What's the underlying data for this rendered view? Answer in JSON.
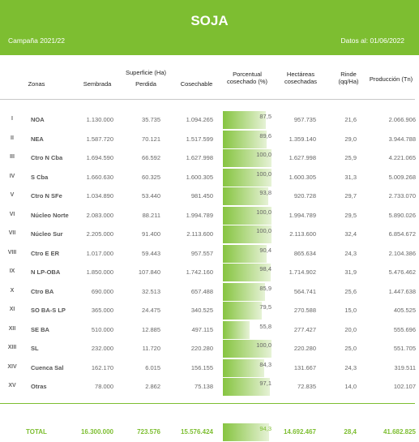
{
  "header": {
    "title": "SOJA",
    "campaign": "Campaña 2021/22",
    "date": "Datos al: 01/06/2022"
  },
  "table": {
    "columns": {
      "zonas": "Zonas",
      "superficie": "Superficie (Ha)",
      "sembrada": "Sembrada",
      "perdida": "Perdida",
      "cosechable": "Cosechable",
      "porcentual": "Porcentual\ncosechado (%)",
      "hectareas": "Hectáreas\ncosechadas",
      "rinde": "Rinde\n(qq/Ha)",
      "produccion": "Producción (Tn)"
    },
    "rows": [
      [
        "I",
        "NOA",
        "1.130.000",
        "35.735",
        "1.094.265",
        "87,5",
        "957.735",
        "21,6",
        "2.066.906"
      ],
      [
        "II",
        "NEA",
        "1.587.720",
        "70.121",
        "1.517.599",
        "89,6",
        "1.359.140",
        "29,0",
        "3.944.788"
      ],
      [
        "III",
        "Ctro N Cba",
        "1.694.590",
        "66.592",
        "1.627.998",
        "100,0",
        "1.627.998",
        "25,9",
        "4.221.065"
      ],
      [
        "IV",
        "S Cba",
        "1.660.630",
        "60.325",
        "1.600.305",
        "100,0",
        "1.600.305",
        "31,3",
        "5.009.268"
      ],
      [
        "V",
        "Ctro N SFe",
        "1.034.890",
        "53.440",
        "981.450",
        "93,8",
        "920.728",
        "29,7",
        "2.733.070"
      ],
      [
        "VI",
        "Núcleo Norte",
        "2.083.000",
        "88.211",
        "1.994.789",
        "100,0",
        "1.994.789",
        "29,5",
        "5.890.026"
      ],
      [
        "VII",
        "Núcleo Sur",
        "2.205.000",
        "91.400",
        "2.113.600",
        "100,0",
        "2.113.600",
        "32,4",
        "6.854.672"
      ],
      [
        "VIII",
        "Ctro E ER",
        "1.017.000",
        "59.443",
        "957.557",
        "90,4",
        "865.634",
        "24,3",
        "2.104.386"
      ],
      [
        "IX",
        "N LP-OBA",
        "1.850.000",
        "107.840",
        "1.742.160",
        "98,4",
        "1.714.902",
        "31,9",
        "5.476.462"
      ],
      [
        "X",
        "Ctro BA",
        "690.000",
        "32.513",
        "657.488",
        "85,9",
        "564.741",
        "25,6",
        "1.447.638"
      ],
      [
        "XI",
        "SO BA-S LP",
        "365.000",
        "24.475",
        "340.525",
        "79,5",
        "270.588",
        "15,0",
        "405.525"
      ],
      [
        "XII",
        "SE BA",
        "510.000",
        "12.885",
        "497.115",
        "55,8",
        "277.427",
        "20,0",
        "555.696"
      ],
      [
        "XIII",
        "SL",
        "232.000",
        "11.720",
        "220.280",
        "100,0",
        "220.280",
        "25,0",
        "551.705"
      ],
      [
        "XIV",
        "Cuenca Sal",
        "162.170",
        "6.015",
        "156.155",
        "84,3",
        "131.667",
        "24,3",
        "319.511"
      ],
      [
        "XV",
        "Otras",
        "78.000",
        "2.862",
        "75.138",
        "97,1",
        "72.835",
        "14,0",
        "102.107"
      ]
    ],
    "total": [
      "TOTAL",
      "16.300.000",
      "723.576",
      "15.576.424",
      "94,3",
      "14.692.467",
      "28,4",
      "41.682.825"
    ]
  }
}
